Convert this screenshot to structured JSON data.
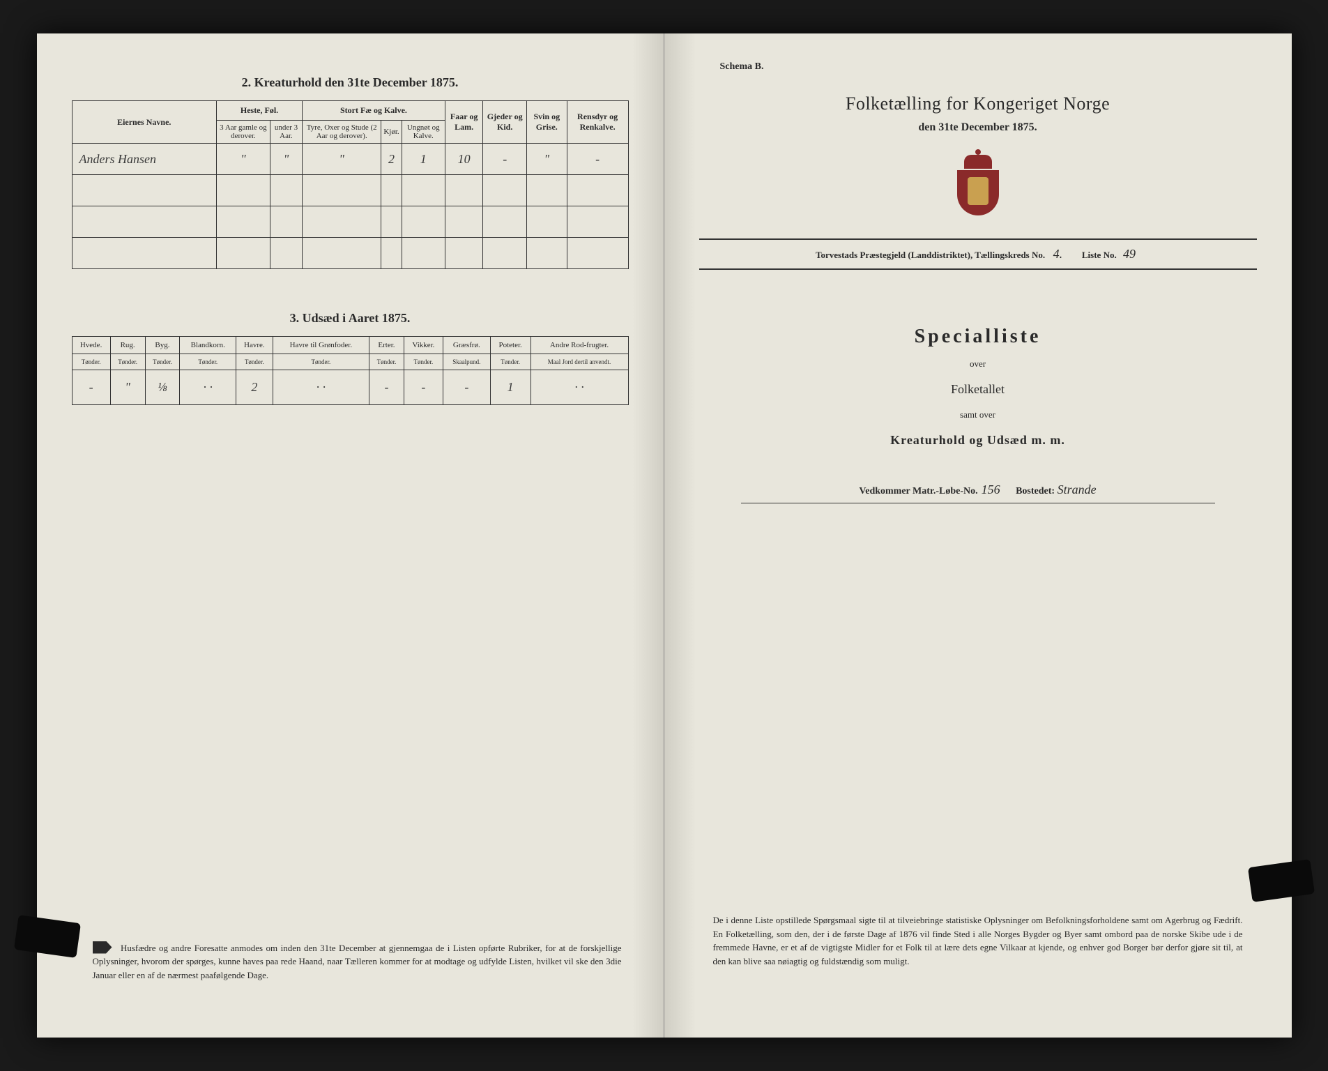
{
  "colors": {
    "paper": "#e8e6dc",
    "ink": "#2a2a2a",
    "crest_red": "#8a2a2a",
    "crest_gold": "#c9a050",
    "background": "#1a1a1a",
    "border": "#333333"
  },
  "left": {
    "section2_title": "2. Kreaturhold den 31te December 1875.",
    "table1": {
      "owner_header": "Eiernes Navne.",
      "group_heste": "Heste, Føl.",
      "group_stort": "Stort Fæ og Kalve.",
      "sub_heste1": "3 Aar gamle og derover.",
      "sub_heste2": "under 3 Aar.",
      "sub_stort1": "Tyre, Oxer og Stude (2 Aar og derover).",
      "sub_stort2": "Kjør.",
      "sub_stort3": "Ungnøt og Kalve.",
      "col_faar": "Faar og Lam.",
      "col_gjeder": "Gjeder og Kid.",
      "col_svin": "Svin og Grise.",
      "col_ren": "Rensdyr og Renkalve.",
      "rows": [
        {
          "name": "Anders Hansen",
          "h1": "\"",
          "h2": "\"",
          "s1": "\"",
          "s2": "2",
          "s3": "1",
          "faar": "10",
          "gjed": "-",
          "svin": "\"",
          "ren": "-"
        },
        {
          "name": "",
          "h1": "",
          "h2": "",
          "s1": "",
          "s2": "",
          "s3": "",
          "faar": "",
          "gjed": "",
          "svin": "",
          "ren": ""
        },
        {
          "name": "",
          "h1": "",
          "h2": "",
          "s1": "",
          "s2": "",
          "s3": "",
          "faar": "",
          "gjed": "",
          "svin": "",
          "ren": ""
        },
        {
          "name": "",
          "h1": "",
          "h2": "",
          "s1": "",
          "s2": "",
          "s3": "",
          "faar": "",
          "gjed": "",
          "svin": "",
          "ren": ""
        }
      ]
    },
    "section3_title": "3. Udsæd i Aaret 1875.",
    "table2": {
      "headers": [
        "Hvede.",
        "Rug.",
        "Byg.",
        "Blandkorn.",
        "Havre.",
        "Havre til Grønfoder.",
        "Erter.",
        "Vikker.",
        "Græsfrø.",
        "Poteter.",
        "Andre Rod-frugter."
      ],
      "units": [
        "Tønder.",
        "Tønder.",
        "Tønder.",
        "Tønder.",
        "Tønder.",
        "Tønder.",
        "Tønder.",
        "Tønder.",
        "Skaalpund.",
        "Tønder.",
        "Maal Jord dertil anvendt."
      ],
      "row": [
        "-",
        "\"",
        "⅛",
        "· ·",
        "2",
        "· ·",
        "-",
        "-",
        "-",
        "1",
        "· ·"
      ]
    },
    "footnote": "Husfædre og andre Foresatte anmodes om inden den 31te December at gjennemgaa de i Listen opførte Rubriker, for at de forskjellige Oplysninger, hvorom der spørges, kunne haves paa rede Haand, naar Tælleren kommer for at modtage og udfylde Listen, hvilket vil ske den 3die Januar eller en af de nærmest paafølgende Dage."
  },
  "right": {
    "schema": "Schema B.",
    "main_title": "Folketælling for Kongeriget Norge",
    "sub_title": "den 31te December 1875.",
    "district_prefix": "Torvestads Præstegjeld (Landdistriktet), Tællingskreds No.",
    "district_no": "4.",
    "liste_label": "Liste No.",
    "liste_no": "49",
    "special_title": "Specialliste",
    "over": "over",
    "folketallet": "Folketallet",
    "samt": "samt over",
    "kreaturhold": "Kreaturhold og Udsæd m. m.",
    "vedk_label": "Vedkommer Matr.-Løbe-No.",
    "matr_no": "156",
    "bostedet_label": "Bostedet:",
    "bostedet": "Strande",
    "footnote": "De i denne Liste opstillede Spørgsmaal sigte til at tilveiebringe statistiske Oplysninger om Befolkningsforholdene samt om Agerbrug og Fædrift. En Folketælling, som den, der i de første Dage af 1876 vil finde Sted i alle Norges Bygder og Byer samt ombord paa de norske Skibe ude i de fremmede Havne, er et af de vigtigste Midler for et Folk til at lære dets egne Vilkaar at kjende, og enhver god Borger bør derfor gjøre sit til, at den kan blive saa nøiagtig og fuldstændig som muligt."
  }
}
